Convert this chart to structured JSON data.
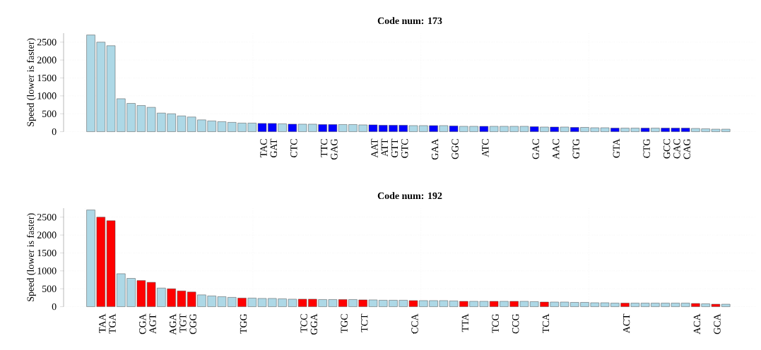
{
  "chart_data": [
    {
      "type": "bar",
      "title": "Code num: 173",
      "ylabel": "Speed (lower is faster)",
      "categories": [
        null,
        null,
        null,
        null,
        null,
        null,
        null,
        null,
        null,
        null,
        null,
        null,
        null,
        null,
        null,
        null,
        null,
        "TAC",
        "GAT",
        null,
        "CTC",
        null,
        null,
        "TTC",
        "GAG",
        null,
        null,
        null,
        "AAT",
        "ATT",
        "GTT",
        "GTC",
        null,
        null,
        "GAA",
        null,
        "GGC",
        null,
        null,
        "ATC",
        null,
        null,
        null,
        null,
        "GAC",
        null,
        "AAC",
        null,
        "GTG",
        null,
        null,
        null,
        "GTA",
        null,
        null,
        "CTG",
        null,
        "GCC",
        "CAC",
        "CAG",
        null,
        null,
        null,
        null
      ],
      "values": [
        2700,
        2500,
        2400,
        920,
        790,
        730,
        680,
        520,
        500,
        440,
        410,
        330,
        300,
        280,
        260,
        240,
        240,
        230,
        230,
        220,
        210,
        210,
        210,
        200,
        200,
        200,
        200,
        190,
        190,
        180,
        180,
        180,
        170,
        170,
        170,
        170,
        160,
        150,
        150,
        150,
        150,
        150,
        150,
        150,
        140,
        130,
        130,
        130,
        120,
        120,
        110,
        110,
        100,
        100,
        100,
        100,
        100,
        100,
        100,
        100,
        90,
        80,
        70,
        70
      ],
      "colors": [
        "#add8e6",
        "#add8e6",
        "#add8e6",
        "#add8e6",
        "#add8e6",
        "#add8e6",
        "#add8e6",
        "#add8e6",
        "#add8e6",
        "#add8e6",
        "#add8e6",
        "#add8e6",
        "#add8e6",
        "#add8e6",
        "#add8e6",
        "#add8e6",
        "#add8e6",
        "#0000ff",
        "#0000ff",
        "#add8e6",
        "#0000ff",
        "#add8e6",
        "#add8e6",
        "#0000ff",
        "#0000ff",
        "#add8e6",
        "#add8e6",
        "#add8e6",
        "#0000ff",
        "#0000ff",
        "#0000ff",
        "#0000ff",
        "#add8e6",
        "#add8e6",
        "#0000ff",
        "#add8e6",
        "#0000ff",
        "#add8e6",
        "#add8e6",
        "#0000ff",
        "#add8e6",
        "#add8e6",
        "#add8e6",
        "#add8e6",
        "#0000ff",
        "#add8e6",
        "#0000ff",
        "#add8e6",
        "#0000ff",
        "#add8e6",
        "#add8e6",
        "#add8e6",
        "#0000ff",
        "#add8e6",
        "#add8e6",
        "#0000ff",
        "#add8e6",
        "#0000ff",
        "#0000ff",
        "#0000ff",
        "#add8e6",
        "#add8e6",
        "#add8e6",
        "#add8e6"
      ],
      "ylim": [
        0,
        2750
      ],
      "yticks": [
        0,
        500,
        1000,
        1500,
        2000,
        2500
      ],
      "grid": true
    },
    {
      "type": "bar",
      "title": "Code num: 192",
      "ylabel": "Speed (lower is faster)",
      "categories": [
        null,
        "TAA",
        "TGA",
        null,
        null,
        "CGA",
        "AGT",
        null,
        "AGA",
        "TGT",
        "CGG",
        null,
        null,
        null,
        null,
        "TGG",
        null,
        null,
        null,
        null,
        null,
        "TCC",
        "GGA",
        null,
        null,
        "TGC",
        null,
        "TCT",
        null,
        null,
        null,
        null,
        "CCA",
        null,
        null,
        null,
        null,
        "TTA",
        null,
        null,
        "TCG",
        null,
        "CCG",
        null,
        null,
        "TCA",
        null,
        null,
        null,
        null,
        null,
        null,
        null,
        "ACT",
        null,
        null,
        null,
        null,
        null,
        null,
        "ACA",
        null,
        "GCA",
        null
      ],
      "values": [
        2700,
        2500,
        2400,
        920,
        790,
        730,
        680,
        520,
        500,
        440,
        410,
        330,
        300,
        280,
        260,
        240,
        240,
        230,
        230,
        220,
        210,
        210,
        210,
        200,
        200,
        200,
        200,
        190,
        190,
        180,
        180,
        180,
        170,
        170,
        170,
        170,
        160,
        150,
        150,
        150,
        150,
        150,
        150,
        150,
        140,
        130,
        130,
        130,
        120,
        120,
        110,
        110,
        100,
        100,
        100,
        100,
        100,
        100,
        100,
        100,
        90,
        80,
        70,
        70
      ],
      "colors": [
        "#add8e6",
        "#ff0000",
        "#ff0000",
        "#add8e6",
        "#add8e6",
        "#ff0000",
        "#ff0000",
        "#add8e6",
        "#ff0000",
        "#ff0000",
        "#ff0000",
        "#add8e6",
        "#add8e6",
        "#add8e6",
        "#add8e6",
        "#ff0000",
        "#add8e6",
        "#add8e6",
        "#add8e6",
        "#add8e6",
        "#add8e6",
        "#ff0000",
        "#ff0000",
        "#add8e6",
        "#add8e6",
        "#ff0000",
        "#add8e6",
        "#ff0000",
        "#add8e6",
        "#add8e6",
        "#add8e6",
        "#add8e6",
        "#ff0000",
        "#add8e6",
        "#add8e6",
        "#add8e6",
        "#add8e6",
        "#ff0000",
        "#add8e6",
        "#add8e6",
        "#ff0000",
        "#add8e6",
        "#ff0000",
        "#add8e6",
        "#add8e6",
        "#ff0000",
        "#add8e6",
        "#add8e6",
        "#add8e6",
        "#add8e6",
        "#add8e6",
        "#add8e6",
        "#add8e6",
        "#ff0000",
        "#add8e6",
        "#add8e6",
        "#add8e6",
        "#add8e6",
        "#add8e6",
        "#add8e6",
        "#ff0000",
        "#add8e6",
        "#ff0000",
        "#add8e6"
      ],
      "ylim": [
        0,
        2750
      ],
      "yticks": [
        0,
        500,
        1000,
        1500,
        2000,
        2500
      ],
      "grid": true
    }
  ]
}
